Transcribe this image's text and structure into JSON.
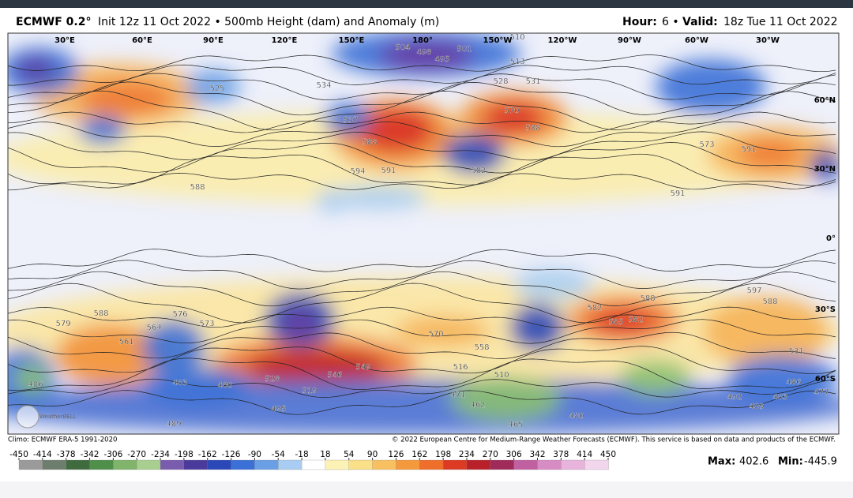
{
  "header": {
    "model": "ECMWF 0.2°",
    "init": "Init 12z 11 Oct 2022 • 500mb Height (dam) and Anomaly (m)",
    "hour_label": "Hour:",
    "hour": "6 •",
    "valid_label": "Valid:",
    "valid": "18z Tue 11 Oct 2022"
  },
  "map": {
    "lon_labels": [
      "30°E",
      "60°E",
      "90°E",
      "120°E",
      "150°E",
      "180°",
      "150°W",
      "120°W",
      "90°W",
      "60°W",
      "30°W"
    ],
    "lat_labels": [
      "60°N",
      "30°N",
      "0°",
      "30°S",
      "60°S"
    ],
    "contour_labels": [
      "504",
      "498",
      "495",
      "501",
      "510",
      "513",
      "525",
      "534",
      "537",
      "528",
      "531",
      "570",
      "588",
      "588",
      "594",
      "591",
      "582",
      "588",
      "591",
      "591",
      "573",
      "582",
      "585",
      "582",
      "588",
      "597",
      "588",
      "570",
      "558",
      "549",
      "546",
      "519",
      "528",
      "483",
      "480",
      "486",
      "489",
      "495",
      "516",
      "510",
      "471",
      "462",
      "465",
      "480",
      "492",
      "489",
      "483",
      "531",
      "486",
      "477",
      "561",
      "564",
      "576",
      "573",
      "579",
      "588"
    ],
    "logo": "WeatherBELL"
  },
  "footer": {
    "climo": "Climo: ECMWF ERA-5 1991-2020",
    "copyright": "© 2022 European Centre for Medium-Range Weather Forecasts (ECMWF). This service is based on data and products of the ECMWF."
  },
  "colorbar": {
    "ticks": [
      -450,
      -414,
      -378,
      -342,
      -306,
      -270,
      -234,
      -198,
      -162,
      -126,
      -90,
      -54,
      -18,
      18,
      54,
      90,
      126,
      162,
      198,
      234,
      270,
      306,
      342,
      378,
      414,
      450
    ],
    "colors": [
      "#9a9a9a",
      "#6e7e6e",
      "#3f6b3f",
      "#4f8f4a",
      "#7fb46a",
      "#a8cf8f",
      "#7a5cae",
      "#4a3a9c",
      "#2a48b8",
      "#3b70d6",
      "#6a9fe6",
      "#a9cdf2",
      "#ffffff",
      "#fdf2b6",
      "#fbe08a",
      "#f8c060",
      "#f59a3c",
      "#ee6e2a",
      "#dd3a24",
      "#b8202a",
      "#a02a5a",
      "#c060a0",
      "#d88cc4",
      "#e8b4dc",
      "#f2d6ee"
    ]
  },
  "stats": {
    "max_label": "Max:",
    "max": 402.6,
    "min_label": "Min:",
    "min": -445.9
  }
}
